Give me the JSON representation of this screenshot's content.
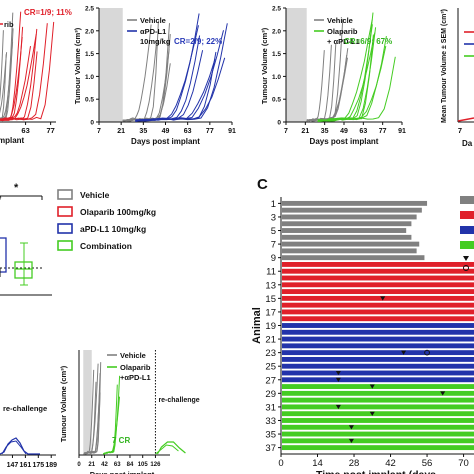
{
  "colors": {
    "vehicle": "#808080",
    "olaparib": "#e0202a",
    "apdl1": "#2233aa",
    "combination": "#44cc22",
    "shade": "#d8d8d8",
    "annot_olaparib": "#e0202a",
    "annot_apdl1": "#2a3bb8",
    "annot_combination": "#32b41e"
  },
  "panel_c_label": "C",
  "chart_data": [
    {
      "id": "panel-olaparib-partial",
      "type": "line",
      "annotation": "CR=1/9; 11%",
      "legend_partial": "rib",
      "x_ticks": [
        "63",
        "77"
      ],
      "x_values": [
        63,
        77
      ],
      "xlabel_partial": "mplant",
      "series": [
        {
          "name": "Vehicle",
          "points": [
            [
              42,
              1.0
            ],
            [
              49,
              2.0
            ],
            [
              56,
              2.4
            ]
          ]
        },
        {
          "name": "Olaparib",
          "points": [
            [
              49,
              0.3
            ],
            [
              60,
              0.8
            ],
            [
              70,
              1.6
            ],
            [
              77,
              2.3
            ]
          ]
        }
      ]
    },
    {
      "id": "panel-apdl1",
      "type": "line",
      "ylabel": "Tumour Volume (cm³)",
      "xlabel": "Days post implant",
      "x_ticks": [
        "7",
        "21",
        "35",
        "49",
        "63",
        "77",
        "91"
      ],
      "y_ticks": [
        "0",
        "0.5",
        "1.0",
        "1.5",
        "2.0",
        "2.5"
      ],
      "xlim": [
        7,
        91
      ],
      "ylim": [
        0,
        2.5
      ],
      "legend": [
        "Vehicle",
        "αPD-L1 10mg/kg"
      ],
      "annotation": "CR=2/9; 22%",
      "shaded_region": [
        7,
        22
      ],
      "series": [
        {
          "name": "Vehicle",
          "group": "vehicle",
          "points": [
            [
              7,
              0.05
            ],
            [
              21,
              0.15
            ],
            [
              35,
              0.6
            ],
            [
              42,
              1.3
            ],
            [
              49,
              2.1
            ]
          ]
        },
        {
          "name": "αPD-L1 10mg/kg",
          "group": "apdl1",
          "points": [
            [
              7,
              0.05
            ],
            [
              28,
              0.2
            ],
            [
              49,
              0.5
            ],
            [
              63,
              1.1
            ],
            [
              77,
              1.9
            ],
            [
              84,
              2.4
            ]
          ]
        }
      ]
    },
    {
      "id": "panel-combo",
      "type": "line",
      "ylabel": "Tumour Volume (cm³)",
      "xlabel": "Days post implant",
      "x_ticks": [
        "7",
        "21",
        "35",
        "49",
        "63",
        "77",
        "91"
      ],
      "y_ticks": [
        "0",
        "0.5",
        "1.0",
        "1.5",
        "2.0",
        "2.5"
      ],
      "xlim": [
        7,
        91
      ],
      "ylim": [
        0,
        2.5
      ],
      "legend": [
        "Vehicle",
        "Olaparib + αPD-L1"
      ],
      "annotation": "CR=6/9; 67%",
      "shaded_region": [
        7,
        22
      ],
      "series": [
        {
          "name": "Vehicle",
          "group": "vehicle",
          "points": [
            [
              7,
              0.05
            ],
            [
              21,
              0.15
            ],
            [
              35,
              0.6
            ],
            [
              42,
              1.3
            ],
            [
              49,
              2.1
            ]
          ]
        },
        {
          "name": "Olaparib + αPD-L1",
          "group": "combination",
          "points": [
            [
              7,
              0.05
            ],
            [
              35,
              0.15
            ],
            [
              56,
              0.5
            ],
            [
              70,
              1.2
            ],
            [
              84,
              2.0
            ]
          ]
        }
      ]
    },
    {
      "id": "panel-mean",
      "type": "line",
      "ylabel": "Mean Tumour Volume ± SEM (cm³)",
      "x_ticks_partial": [
        "7"
      ],
      "xlabel_partial": "Da"
    },
    {
      "id": "panel-box",
      "type": "box",
      "significance": "*",
      "legend": [
        "Vehicle",
        "Olaparib 100mg/kg",
        "aPD-L1 10mg/kg",
        "Combination"
      ]
    },
    {
      "id": "panel-rechallenge-left",
      "type": "line",
      "annotation": "re-challenge",
      "x_ticks": [
        "147",
        "161",
        "175",
        "189"
      ],
      "x_values": [
        147,
        161,
        175,
        189
      ]
    },
    {
      "id": "panel-rechallenge-right",
      "type": "line",
      "ylabel": "Tumour Volume (cm³)",
      "xlabel": "Days post implant",
      "x_ticks": [
        "0",
        "21",
        "42",
        "63",
        "84",
        "105",
        "126"
      ],
      "xlim": [
        0,
        150
      ],
      "ylim": [
        0,
        2.5
      ],
      "legend": [
        "Vehicle",
        "Olaparib + αPD-L1"
      ],
      "annotation_cr": "7 CR",
      "annotation_re": "re-challenge",
      "rechallenge_day": 126,
      "shaded_region": [
        7,
        21
      ],
      "series": [
        {
          "name": "Vehicle",
          "group": "vehicle",
          "points": [
            [
              7,
              0.05
            ],
            [
              21,
              0.4
            ],
            [
              28,
              1.2
            ],
            [
              35,
              2.2
            ]
          ]
        },
        {
          "name": "Olaparib + αPD-L1",
          "group": "combination",
          "points": [
            [
              7,
              0.05
            ],
            [
              42,
              0.1
            ],
            [
              63,
              0.6
            ],
            [
              77,
              1.6
            ]
          ]
        }
      ]
    },
    {
      "id": "panel-c-swimmer",
      "type": "bar",
      "orientation": "horizontal",
      "ylabel": "Animal",
      "xlabel": "Time post implant (days",
      "x_ticks": [
        "0",
        "14",
        "28",
        "42",
        "56",
        "70"
      ],
      "xlim": [
        0,
        74
      ],
      "y_ticks": [
        "1",
        "3",
        "5",
        "7",
        "9",
        "11",
        "13",
        "15",
        "17",
        "19",
        "21",
        "23",
        "25",
        "27",
        "29",
        "31",
        "33",
        "35",
        "37"
      ],
      "groups": [
        {
          "name": "Vehicle",
          "color_key": "vehicle",
          "animals": [
            1,
            9
          ],
          "values": [
            56,
            54,
            52,
            50,
            48,
            50,
            53,
            52,
            55
          ]
        },
        {
          "name": "Olaparib",
          "color_key": "olaparib",
          "animals": [
            10,
            18
          ],
          "values": [
            74,
            74,
            74,
            74,
            74,
            74,
            74,
            74,
            74
          ]
        },
        {
          "name": "αPD-L1",
          "color_key": "apdl1",
          "animals": [
            19,
            27
          ],
          "values": [
            74,
            74,
            74,
            74,
            74,
            74,
            74,
            74,
            74
          ]
        },
        {
          "name": "Combination",
          "color_key": "combination",
          "animals": [
            28,
            37
          ],
          "values": [
            74,
            74,
            74,
            74,
            74,
            74,
            74,
            74,
            74,
            74
          ]
        }
      ],
      "triangle_markers": [
        [
          15,
          39
        ],
        [
          23,
          47
        ],
        [
          26,
          22
        ],
        [
          27,
          22
        ],
        [
          28,
          35
        ],
        [
          29,
          62
        ],
        [
          31,
          22
        ],
        [
          32,
          35
        ],
        [
          34,
          27
        ],
        [
          36,
          27
        ]
      ],
      "circle_markers": [
        [
          23,
          56
        ]
      ]
    }
  ]
}
